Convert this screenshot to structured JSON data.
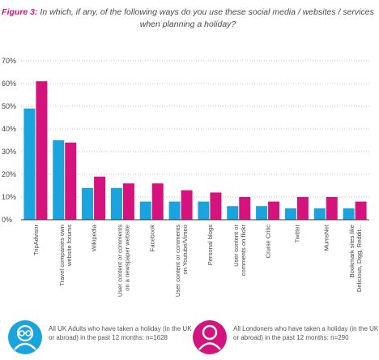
{
  "title": {
    "figure": "Figure 3:",
    "text_line1": " In which, if any, of the following ways do you use these social media / websites / services",
    "text_line2": "when planning a holiday?"
  },
  "colors": {
    "uk": "#1aa3dd",
    "london": "#d4147c",
    "axis": "#333333",
    "grid": "#888888",
    "text": "#444444"
  },
  "chart_data": {
    "type": "bar",
    "title": "In which, if any, of the following ways do you use these social media / websites / services when planning a holiday?",
    "xlabel": "",
    "ylabel": "",
    "ylim": [
      0,
      70
    ],
    "yticks": [
      "0%",
      "10%",
      "20%",
      "30%",
      "40%",
      "50%",
      "60%",
      "70%"
    ],
    "grid": "horizontal dotted",
    "legend": "bottom",
    "categories": [
      [
        "TripAdvisor"
      ],
      [
        "Travel companies own",
        "website forums"
      ],
      [
        "Wikipedia"
      ],
      [
        "User content or comments",
        "on a newspaper website"
      ],
      [
        "Facebook"
      ],
      [
        "User content or comments",
        "on Youtube/Vimeo"
      ],
      [
        "Personal blogs"
      ],
      [
        "User content or",
        "comments on flickr"
      ],
      [
        "Cruise Critic"
      ],
      [
        "Twitter"
      ],
      [
        "MumsNet"
      ],
      [
        "Bookmark sites like",
        "Delicious, Digg, Reddit..."
      ]
    ],
    "series": [
      {
        "name": "All UK Adults who have taken a holiday (in the UK or abroad) in the past 12 months: n=1628",
        "values": [
          49,
          35,
          14,
          14,
          8,
          8,
          8,
          6,
          6,
          5,
          5,
          5
        ]
      },
      {
        "name": "All Londoners who have taken a holiday (in the UK or abroad) in the past 12 months: n=290",
        "values": [
          61,
          34,
          19,
          16,
          16,
          13,
          12,
          10,
          8,
          10,
          10,
          8
        ]
      }
    ]
  },
  "legend": {
    "uk_text": "All UK Adults who have taken a holiday (in the UK or abroad) in the past 12 months: n=1628",
    "london_text": "All Londoners who have taken a holiday (in the UK or abroad) in the past 12 months: n=290",
    "uk_icon": "person-with-glasses-icon",
    "london_icon": "person-icon"
  }
}
